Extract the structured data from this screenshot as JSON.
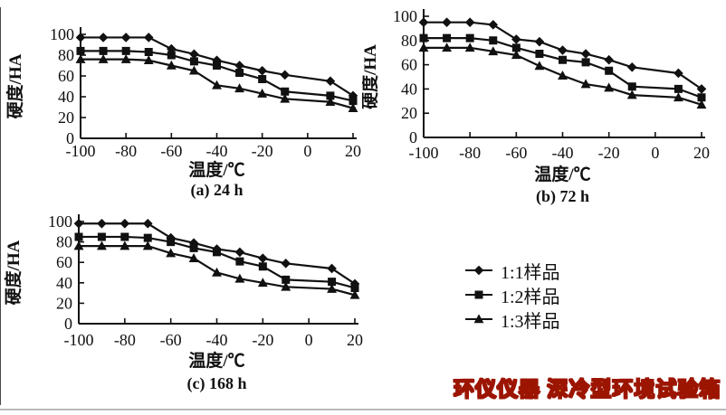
{
  "figure": {
    "watermark": {
      "text": "环仪仪器 深冷型环境试验箱",
      "fill_color": "#ffe50a",
      "outline_color": "#9c1500"
    },
    "legend": {
      "items": [
        {
          "label": "1:1样品",
          "marker": "diamond"
        },
        {
          "label": "1:2样品",
          "marker": "square"
        },
        {
          "label": "1:3样品",
          "marker": "triangle"
        }
      ]
    },
    "ink_color": "#111111"
  },
  "chart_data": [
    {
      "id": "a",
      "type": "line",
      "caption": "(a) 24 h",
      "xlabel": "温度/℃",
      "ylabel": "硬度/HA",
      "xlim": [
        -100,
        20
      ],
      "ylim": [
        0,
        100
      ],
      "x_ticks": [
        -100,
        -80,
        -60,
        -40,
        -20,
        0,
        20
      ],
      "y_ticks": [
        0,
        20,
        40,
        60,
        80,
        100
      ],
      "grid": false,
      "x": [
        -100,
        -90,
        -80,
        -70,
        -60,
        -50,
        -40,
        -30,
        -20,
        -10,
        10,
        20
      ],
      "series": [
        {
          "name": "1:1样品",
          "marker": "diamond",
          "values": [
            97,
            97,
            97,
            97,
            86,
            81,
            75,
            70,
            65,
            61,
            55,
            41
          ]
        },
        {
          "name": "1:2样品",
          "marker": "square",
          "values": [
            84,
            84,
            84,
            83,
            80,
            74,
            70,
            63,
            57,
            45,
            41,
            36
          ]
        },
        {
          "name": "1:3样品",
          "marker": "triangle",
          "values": [
            76,
            76,
            76,
            75,
            70,
            65,
            51,
            48,
            43,
            38,
            35,
            29
          ]
        }
      ]
    },
    {
      "id": "b",
      "type": "line",
      "caption": "(b) 72 h",
      "xlabel": "温度/℃",
      "ylabel": "硬度/HA",
      "xlim": [
        -100,
        20
      ],
      "ylim": [
        0,
        100
      ],
      "x_ticks": [
        -100,
        -80,
        -60,
        -40,
        -20,
        0,
        20
      ],
      "y_ticks": [
        0,
        20,
        40,
        60,
        80,
        100
      ],
      "grid": false,
      "x": [
        -100,
        -90,
        -80,
        -70,
        -60,
        -50,
        -40,
        -30,
        -20,
        -10,
        10,
        20
      ],
      "series": [
        {
          "name": "1:1样品",
          "marker": "diamond",
          "values": [
            95,
            95,
            95,
            93,
            81,
            79,
            72,
            69,
            64,
            58,
            53,
            40
          ]
        },
        {
          "name": "1:2样品",
          "marker": "square",
          "values": [
            82,
            82,
            82,
            80,
            74,
            69,
            64,
            62,
            55,
            42,
            40,
            33
          ]
        },
        {
          "name": "1:3样品",
          "marker": "triangle",
          "values": [
            74,
            74,
            74,
            71,
            68,
            59,
            51,
            44,
            41,
            35,
            33,
            27
          ]
        }
      ]
    },
    {
      "id": "c",
      "type": "line",
      "caption": "(c) 168 h",
      "xlabel": "温度/℃",
      "ylabel": "硬度/HA",
      "xlim": [
        -100,
        20
      ],
      "ylim": [
        0,
        100
      ],
      "x_ticks": [
        -100,
        -80,
        -60,
        -40,
        -20,
        0,
        20
      ],
      "y_ticks": [
        0,
        20,
        40,
        60,
        80,
        100
      ],
      "grid": false,
      "x": [
        -100,
        -90,
        -80,
        -70,
        -60,
        -50,
        -40,
        -30,
        -20,
        -10,
        10,
        20
      ],
      "series": [
        {
          "name": "1:1样品",
          "marker": "diamond",
          "values": [
            98,
            98,
            98,
            98,
            84,
            79,
            73,
            70,
            64,
            59,
            54,
            39
          ]
        },
        {
          "name": "1:2样品",
          "marker": "square",
          "values": [
            85,
            85,
            85,
            84,
            80,
            74,
            70,
            61,
            56,
            43,
            41,
            35
          ]
        },
        {
          "name": "1:3样品",
          "marker": "triangle",
          "values": [
            76,
            76,
            76,
            76,
            69,
            64,
            50,
            44,
            40,
            36,
            34,
            28
          ]
        }
      ]
    }
  ]
}
